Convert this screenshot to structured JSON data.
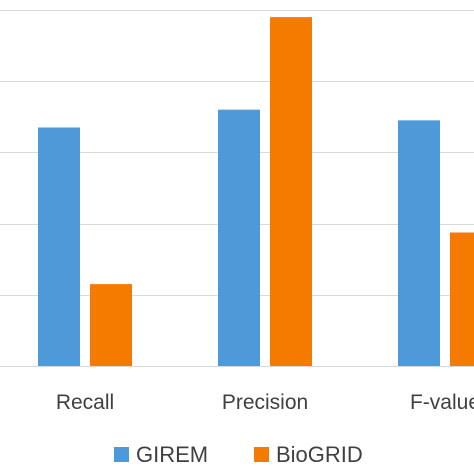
{
  "chart_data": {
    "type": "bar",
    "categories": [
      "Recall",
      "Precision",
      "F-value"
    ],
    "series": [
      {
        "name": "GIREM",
        "values": [
          0.67,
          0.72,
          0.69
        ],
        "color": "#4e9ad8"
      },
      {
        "name": "BioGRID",
        "values": [
          0.23,
          0.98,
          0.375
        ],
        "color": "#f47a00"
      }
    ],
    "ylim": [
      0,
      1.0
    ],
    "ytick_step": 0.2,
    "grid": true,
    "legend_position": "bottom"
  }
}
